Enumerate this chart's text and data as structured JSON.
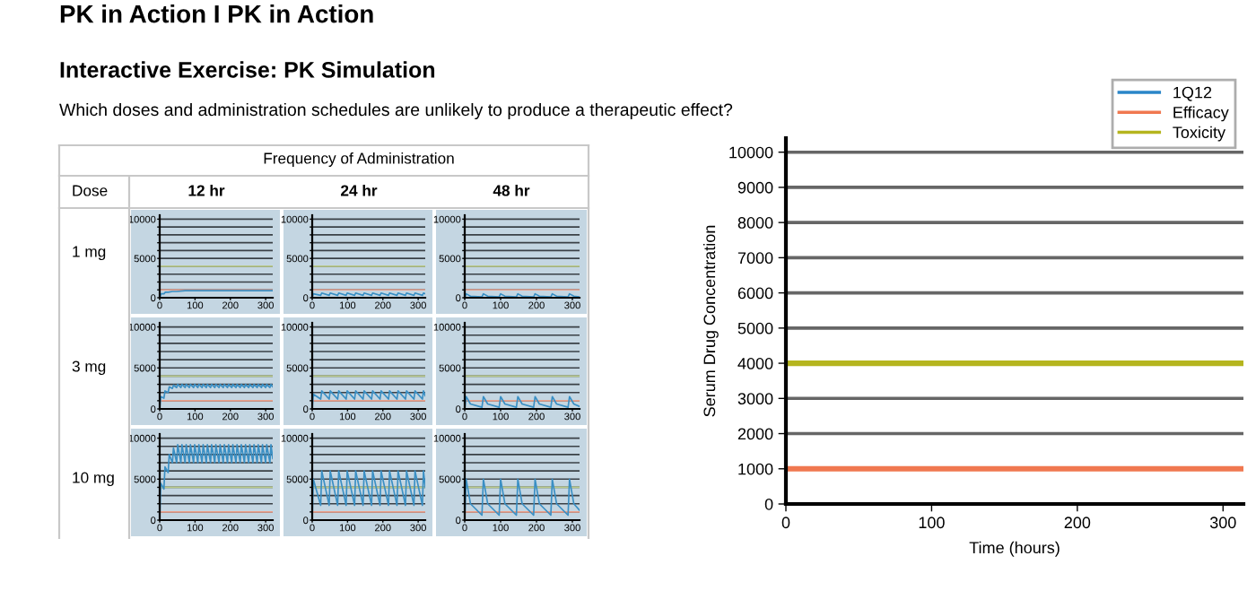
{
  "chart_data": [
    {
      "type": "other",
      "title": "PK in Action I PK in Action",
      "subtitle": "Interactive Exercise: PK Simulation",
      "annotations": [
        "Which doses and administration schedules are unlikely to produce a therapeutic effect?",
        "Frequency of Administration",
        "Dose",
        "12 hr",
        "24 hr",
        "48 hr",
        "1 mg",
        "3 mg",
        "10 mg"
      ]
    },
    {
      "type": "line",
      "xlim": [
        0,
        320
      ],
      "ylim": [
        0,
        10500
      ],
      "xticks": [
        0,
        100,
        200,
        300
      ],
      "yticks": [
        0,
        {
          "value": 1000,
          "label": null
        },
        {
          "value": 2000,
          "label": null
        },
        {
          "value": 3000,
          "label": null
        },
        {
          "value": 4000,
          "label": null
        },
        5000,
        {
          "value": 6000,
          "label": null
        },
        {
          "value": 7000,
          "label": null
        },
        {
          "value": 8000,
          "label": null
        },
        {
          "value": 9000,
          "label": null
        },
        10000
      ],
      "grid": "y",
      "ref_lines": [
        {
          "axis": "y",
          "value": 1000,
          "color": "#e9a08c"
        },
        {
          "axis": "y",
          "value": 4000,
          "color": "#b9c98a"
        }
      ],
      "x": [
        0,
        4,
        12,
        16,
        24,
        36,
        48,
        72,
        96,
        150,
        200,
        250,
        300,
        320
      ],
      "series": [
        {
          "color": "#3a8fc4",
          "values": [
            0,
            500,
            500,
            700,
            700,
            800,
            800,
            900,
            900,
            900,
            900,
            900,
            900,
            900
          ]
        }
      ]
    },
    {
      "type": "line",
      "xlim": [
        0,
        320
      ],
      "ylim": [
        0,
        10500
      ],
      "xticks": [
        0,
        100,
        200,
        300
      ],
      "yticks": [
        0,
        {
          "value": 1000,
          "label": null
        },
        {
          "value": 2000,
          "label": null
        },
        {
          "value": 3000,
          "label": null
        },
        {
          "value": 4000,
          "label": null
        },
        5000,
        {
          "value": 6000,
          "label": null
        },
        {
          "value": 7000,
          "label": null
        },
        {
          "value": 8000,
          "label": null
        },
        {
          "value": 9000,
          "label": null
        },
        10000
      ],
      "grid": "y",
      "ref_lines": [
        {
          "axis": "y",
          "value": 1000,
          "color": "#e9a08c"
        },
        {
          "axis": "y",
          "value": 4000,
          "color": "#b9c98a"
        }
      ],
      "x": [
        0,
        3,
        24,
        27,
        48,
        51,
        72,
        75,
        96,
        99,
        120,
        123,
        144,
        147,
        168,
        171,
        192,
        195,
        216,
        219,
        240,
        243,
        264,
        267,
        288,
        291,
        312,
        315,
        320
      ],
      "series": [
        {
          "color": "#3a8fc4",
          "values": [
            0,
            500,
            300,
            600,
            300,
            600,
            300,
            600,
            300,
            600,
            300,
            600,
            300,
            600,
            300,
            600,
            300,
            600,
            300,
            600,
            300,
            600,
            300,
            600,
            300,
            600,
            300,
            600,
            500
          ]
        }
      ]
    },
    {
      "type": "line",
      "xlim": [
        0,
        320
      ],
      "ylim": [
        0,
        10500
      ],
      "xticks": [
        0,
        100,
        200,
        300
      ],
      "yticks": [
        0,
        {
          "value": 1000,
          "label": null
        },
        {
          "value": 2000,
          "label": null
        },
        {
          "value": 3000,
          "label": null
        },
        {
          "value": 4000,
          "label": null
        },
        5000,
        {
          "value": 6000,
          "label": null
        },
        {
          "value": 7000,
          "label": null
        },
        {
          "value": 8000,
          "label": null
        },
        {
          "value": 9000,
          "label": null
        },
        10000
      ],
      "grid": "y",
      "ref_lines": [
        {
          "axis": "y",
          "value": 1000,
          "color": "#e9a08c"
        },
        {
          "axis": "y",
          "value": 4000,
          "color": "#b9c98a"
        }
      ],
      "x": [
        0,
        4,
        16,
        48,
        52,
        64,
        96,
        100,
        112,
        144,
        148,
        160,
        192,
        196,
        208,
        240,
        244,
        256,
        288,
        292,
        304,
        320
      ],
      "series": [
        {
          "color": "#3a8fc4",
          "values": [
            0,
            500,
            200,
            100,
            500,
            200,
            100,
            500,
            200,
            100,
            500,
            200,
            100,
            500,
            200,
            100,
            500,
            200,
            100,
            500,
            200,
            100
          ]
        }
      ]
    },
    {
      "type": "line",
      "xlim": [
        0,
        320
      ],
      "ylim": [
        0,
        10500
      ],
      "xticks": [
        0,
        100,
        200,
        300
      ],
      "yticks": [
        0,
        {
          "value": 1000,
          "label": null
        },
        {
          "value": 2000,
          "label": null
        },
        {
          "value": 3000,
          "label": null
        },
        {
          "value": 4000,
          "label": null
        },
        5000,
        {
          "value": 6000,
          "label": null
        },
        {
          "value": 7000,
          "label": null
        },
        {
          "value": 8000,
          "label": null
        },
        {
          "value": 9000,
          "label": null
        },
        10000
      ],
      "grid": "y",
      "ref_lines": [
        {
          "axis": "y",
          "value": 1000,
          "color": "#e9a08c"
        },
        {
          "axis": "y",
          "value": 4000,
          "color": "#b9c98a"
        }
      ],
      "x": [
        0,
        3,
        12,
        15,
        24,
        27,
        36,
        39,
        48,
        51,
        60,
        63,
        72,
        75,
        84,
        87,
        96,
        99,
        108,
        111,
        120,
        123,
        132,
        135,
        144,
        147,
        156,
        159,
        168,
        171,
        180,
        183,
        192,
        195,
        204,
        207,
        216,
        219,
        228,
        231,
        240,
        243,
        252,
        255,
        264,
        267,
        276,
        279,
        288,
        291,
        300,
        303,
        312,
        315,
        320
      ],
      "series": [
        {
          "color": "#3a8fc4",
          "values": [
            0,
            1500,
            1300,
            2200,
            2000,
            2700,
            2500,
            2900,
            2600,
            3000,
            2600,
            3000,
            2600,
            3000,
            2600,
            3000,
            2600,
            3000,
            2600,
            3000,
            2600,
            3000,
            2600,
            3000,
            2600,
            3000,
            2600,
            3000,
            2600,
            3000,
            2600,
            3000,
            2600,
            3000,
            2600,
            3000,
            2600,
            3000,
            2600,
            3000,
            2600,
            3000,
            2600,
            3000,
            2600,
            3000,
            2600,
            3000,
            2600,
            3000,
            2600,
            3000,
            2600,
            3000,
            2700
          ]
        }
      ]
    },
    {
      "type": "line",
      "xlim": [
        0,
        320
      ],
      "ylim": [
        0,
        10500
      ],
      "xticks": [
        0,
        100,
        200,
        300
      ],
      "yticks": [
        0,
        {
          "value": 1000,
          "label": null
        },
        {
          "value": 2000,
          "label": null
        },
        {
          "value": 3000,
          "label": null
        },
        {
          "value": 4000,
          "label": null
        },
        5000,
        {
          "value": 6000,
          "label": null
        },
        {
          "value": 7000,
          "label": null
        },
        {
          "value": 8000,
          "label": null
        },
        {
          "value": 9000,
          "label": null
        },
        10000
      ],
      "grid": "y",
      "ref_lines": [
        {
          "axis": "y",
          "value": 1000,
          "color": "#e9a08c"
        },
        {
          "axis": "y",
          "value": 4000,
          "color": "#b9c98a"
        }
      ],
      "x": [
        0,
        3,
        24,
        27,
        48,
        51,
        72,
        75,
        96,
        99,
        120,
        123,
        144,
        147,
        168,
        171,
        192,
        195,
        216,
        219,
        240,
        243,
        264,
        267,
        288,
        291,
        312,
        315,
        320
      ],
      "series": [
        {
          "color": "#3a8fc4",
          "values": [
            0,
            1800,
            1200,
            2200,
            1200,
            2200,
            1200,
            2200,
            1200,
            2200,
            1200,
            2200,
            1200,
            2200,
            1200,
            2200,
            1200,
            2200,
            1200,
            2200,
            1200,
            2200,
            1200,
            2200,
            1200,
            2200,
            1200,
            2200,
            1600
          ]
        }
      ]
    },
    {
      "type": "line",
      "xlim": [
        0,
        320
      ],
      "ylim": [
        0,
        10500
      ],
      "xticks": [
        0,
        100,
        200,
        300
      ],
      "yticks": [
        0,
        {
          "value": 1000,
          "label": null
        },
        {
          "value": 2000,
          "label": null
        },
        {
          "value": 3000,
          "label": null
        },
        {
          "value": 4000,
          "label": null
        },
        5000,
        {
          "value": 6000,
          "label": null
        },
        {
          "value": 7000,
          "label": null
        },
        {
          "value": 8000,
          "label": null
        },
        {
          "value": 9000,
          "label": null
        },
        10000
      ],
      "grid": "y",
      "ref_lines": [
        {
          "axis": "y",
          "value": 1000,
          "color": "#e9a08c"
        },
        {
          "axis": "y",
          "value": 4000,
          "color": "#b9c98a"
        }
      ],
      "x": [
        0,
        4,
        16,
        48,
        52,
        64,
        96,
        100,
        112,
        144,
        148,
        160,
        192,
        196,
        208,
        240,
        244,
        256,
        288,
        292,
        304,
        320
      ],
      "series": [
        {
          "color": "#3a8fc4",
          "values": [
            0,
            1500,
            600,
            200,
            1500,
            600,
            200,
            1500,
            600,
            200,
            1500,
            600,
            200,
            1500,
            600,
            200,
            1500,
            600,
            200,
            1500,
            600,
            300
          ]
        }
      ]
    },
    {
      "type": "line",
      "xlim": [
        0,
        320
      ],
      "ylim": [
        0,
        10500
      ],
      "xticks": [
        0,
        100,
        200,
        300
      ],
      "yticks": [
        0,
        {
          "value": 1000,
          "label": null
        },
        {
          "value": 2000,
          "label": null
        },
        {
          "value": 3000,
          "label": null
        },
        {
          "value": 4000,
          "label": null
        },
        5000,
        {
          "value": 6000,
          "label": null
        },
        {
          "value": 7000,
          "label": null
        },
        {
          "value": 8000,
          "label": null
        },
        {
          "value": 9000,
          "label": null
        },
        10000
      ],
      "grid": "y",
      "ref_lines": [
        {
          "axis": "y",
          "value": 1000,
          "color": "#e9a08c"
        },
        {
          "axis": "y",
          "value": 4000,
          "color": "#b9c98a"
        }
      ],
      "x": [
        0,
        3,
        12,
        15,
        24,
        27,
        36,
        39,
        48,
        51,
        60,
        63,
        72,
        75,
        84,
        87,
        96,
        99,
        108,
        111,
        120,
        123,
        132,
        135,
        144,
        147,
        156,
        159,
        168,
        171,
        180,
        183,
        192,
        195,
        204,
        207,
        216,
        219,
        228,
        231,
        240,
        243,
        252,
        255,
        264,
        267,
        276,
        279,
        288,
        291,
        300,
        303,
        312,
        315,
        320
      ],
      "series": [
        {
          "color": "#3a8fc4",
          "values": [
            0,
            4500,
            3800,
            6500,
            5800,
            8000,
            7000,
            8800,
            7000,
            9200,
            7000,
            9200,
            7000,
            9200,
            7000,
            9200,
            7000,
            9200,
            7000,
            9200,
            7000,
            9200,
            7000,
            9200,
            7000,
            9200,
            7000,
            9200,
            7000,
            9200,
            7000,
            9200,
            7000,
            9200,
            7000,
            9200,
            7000,
            9200,
            7000,
            9200,
            7000,
            9200,
            7000,
            9200,
            7000,
            9200,
            7000,
            9200,
            7000,
            9200,
            7000,
            9200,
            7000,
            9200,
            7500
          ]
        }
      ]
    },
    {
      "type": "line",
      "xlim": [
        0,
        320
      ],
      "ylim": [
        0,
        10500
      ],
      "xticks": [
        0,
        100,
        200,
        300
      ],
      "yticks": [
        0,
        {
          "value": 1000,
          "label": null
        },
        {
          "value": 2000,
          "label": null
        },
        {
          "value": 3000,
          "label": null
        },
        {
          "value": 4000,
          "label": null
        },
        5000,
        {
          "value": 6000,
          "label": null
        },
        {
          "value": 7000,
          "label": null
        },
        {
          "value": 8000,
          "label": null
        },
        {
          "value": 9000,
          "label": null
        },
        10000
      ],
      "grid": "y",
      "ref_lines": [
        {
          "axis": "y",
          "value": 1000,
          "color": "#e9a08c"
        },
        {
          "axis": "y",
          "value": 4000,
          "color": "#b9c98a"
        }
      ],
      "x": [
        0,
        3,
        24,
        27,
        48,
        51,
        72,
        75,
        96,
        99,
        120,
        123,
        144,
        147,
        168,
        171,
        192,
        195,
        216,
        219,
        240,
        243,
        264,
        267,
        288,
        291,
        312,
        315,
        320
      ],
      "series": [
        {
          "color": "#3a8fc4",
          "values": [
            0,
            5000,
            1800,
            6000,
            1800,
            6000,
            1800,
            6000,
            1800,
            6000,
            1800,
            6000,
            1800,
            6000,
            1800,
            6000,
            1800,
            6000,
            1800,
            6000,
            1800,
            6000,
            1800,
            6000,
            1800,
            6000,
            1800,
            6000,
            4000
          ]
        }
      ]
    },
    {
      "type": "line",
      "xlim": [
        0,
        320
      ],
      "ylim": [
        0,
        10500
      ],
      "xticks": [
        0,
        100,
        200,
        300
      ],
      "yticks": [
        0,
        {
          "value": 1000,
          "label": null
        },
        {
          "value": 2000,
          "label": null
        },
        {
          "value": 3000,
          "label": null
        },
        {
          "value": 4000,
          "label": null
        },
        5000,
        {
          "value": 6000,
          "label": null
        },
        {
          "value": 7000,
          "label": null
        },
        {
          "value": 8000,
          "label": null
        },
        {
          "value": 9000,
          "label": null
        },
        10000
      ],
      "grid": "y",
      "ref_lines": [
        {
          "axis": "y",
          "value": 1000,
          "color": "#e9a08c"
        },
        {
          "axis": "y",
          "value": 4000,
          "color": "#b9c98a"
        }
      ],
      "x": [
        0,
        4,
        16,
        48,
        52,
        64,
        96,
        100,
        112,
        144,
        148,
        160,
        192,
        196,
        208,
        240,
        244,
        256,
        288,
        292,
        304,
        320
      ],
      "series": [
        {
          "color": "#3a8fc4",
          "values": [
            0,
            5000,
            2000,
            600,
            5000,
            2000,
            600,
            5000,
            2000,
            600,
            5000,
            2000,
            600,
            5000,
            2000,
            600,
            5000,
            2000,
            600,
            5000,
            2000,
            1200
          ]
        }
      ]
    },
    {
      "type": "line",
      "xlabel": "Time (hours)",
      "ylabel": "Serum Drug Concentration",
      "xlim": [
        0,
        314
      ],
      "ylim": [
        0,
        10400
      ],
      "xticks": [
        0,
        100,
        200,
        300
      ],
      "yticks": [
        0,
        1000,
        2000,
        3000,
        4000,
        5000,
        6000,
        7000,
        8000,
        9000,
        10000
      ],
      "grid": "y",
      "legend": "top right",
      "x": [
        0,
        314
      ],
      "series": [
        {
          "name": "1Q12",
          "color": "#2a86c8",
          "values": [
            null,
            null
          ]
        },
        {
          "name": "Efficacy",
          "color": "#f07850",
          "values": [
            1000,
            1000
          ]
        },
        {
          "name": "Toxicity",
          "color": "#b5b51e",
          "values": [
            4000,
            4000
          ]
        }
      ]
    }
  ]
}
